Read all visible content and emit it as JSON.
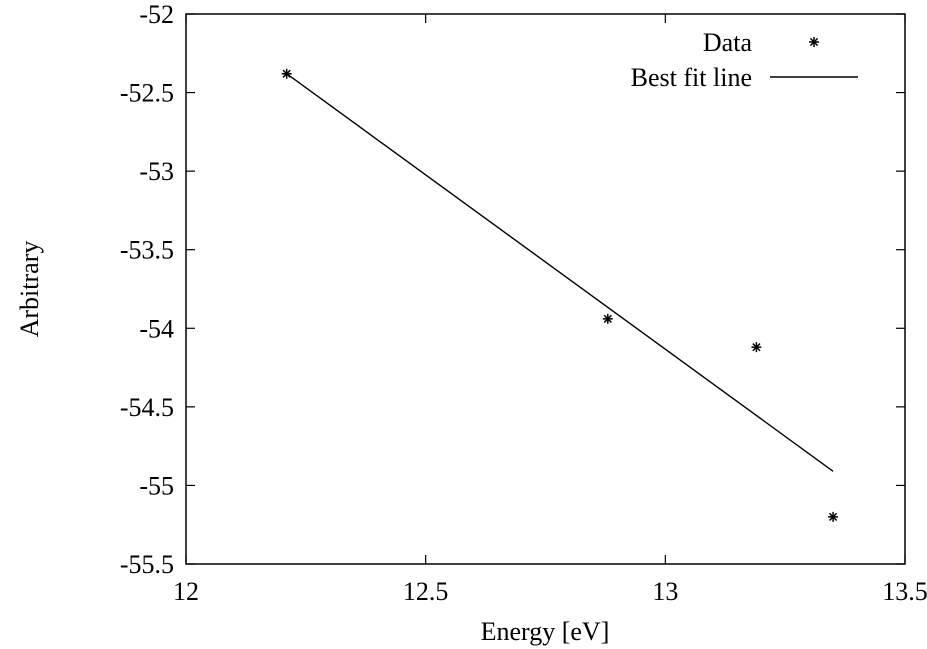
{
  "chart_data": {
    "type": "scatter",
    "xlabel": "Energy [eV]",
    "ylabel": "Arbitrary",
    "xlim": [
      12,
      13.5
    ],
    "ylim": [
      -55.5,
      -52
    ],
    "x_ticks": [
      12,
      12.5,
      13,
      13.5
    ],
    "x_tick_labels": [
      "12",
      "12.5",
      "13",
      "13.5"
    ],
    "y_ticks": [
      -52,
      -52.5,
      -53,
      -53.5,
      -54,
      -54.5,
      -55,
      -55.5
    ],
    "y_tick_labels": [
      "-52",
      "-52.5",
      "-53",
      "-53.5",
      "-54",
      "-54.5",
      "-55",
      "-55.5"
    ],
    "grid": false,
    "legend_position": "top-right",
    "series": [
      {
        "name": "Data",
        "kind": "points",
        "marker": "asterisk",
        "x": [
          12.21,
          12.88,
          13.19,
          13.35
        ],
        "y": [
          -52.38,
          -53.94,
          -54.12,
          -55.2
        ]
      },
      {
        "name": "Best fit line",
        "kind": "line",
        "x": [
          12.21,
          13.35
        ],
        "y": [
          -52.38,
          -54.91
        ]
      }
    ]
  }
}
